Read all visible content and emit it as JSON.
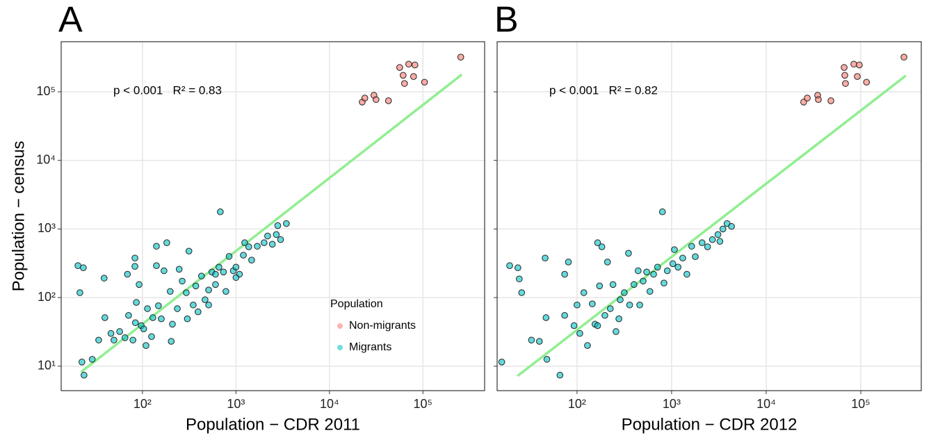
{
  "chart_data": [
    {
      "type": "scatter",
      "title": "A",
      "annotation": "p < 0.001   R² = 0.83",
      "xlabel": "Population − CDR 2011",
      "ylabel": "Population − census",
      "xscale": "log",
      "yscale": "log",
      "grid": true,
      "xlim": [
        13.5,
        457000
      ],
      "ylim": [
        4.4,
        537000
      ],
      "xticks": [
        {
          "value": 100,
          "label": "10²"
        },
        {
          "value": 1000,
          "label": "10³"
        },
        {
          "value": 10000,
          "label": "10⁴"
        },
        {
          "value": 100000,
          "label": "10⁵"
        }
      ],
      "yticks": [
        {
          "value": 10,
          "label": "10¹"
        },
        {
          "value": 100,
          "label": "10²"
        },
        {
          "value": 1000,
          "label": "10³"
        },
        {
          "value": 10000,
          "label": "10⁴"
        },
        {
          "value": 100000,
          "label": "10⁵"
        }
      ],
      "legend": {
        "title": "Population",
        "position": "bottom-right"
      },
      "series": [
        {
          "name": "Non-migrants",
          "color": "#F8766D",
          "x": [
            22400,
            23900,
            29900,
            31500,
            42800,
            56400,
            61400,
            63500,
            70500,
            79400,
            82100,
            104000,
            254000
          ],
          "values": [
            70800,
            81000,
            89000,
            77000,
            74000,
            226000,
            174000,
            132000,
            253000,
            167000,
            246000,
            138000,
            320000
          ]
        },
        {
          "name": "Migrants",
          "color": "#00BFC4",
          "x": [
            20.4,
            23.3,
            21.4,
            38.9,
            39.6,
            22.5,
            23.7,
            29,
            34,
            49.5,
            57,
            65,
            69,
            79,
            83,
            83,
            86,
            84,
            92,
            97,
            103,
            113,
            125,
            129,
            141,
            141,
            148,
            159,
            170,
            182,
            198,
            209,
            236,
            266,
            294,
            314,
            349,
            372,
            428,
            467,
            510,
            553,
            604,
            657,
            680,
            735,
            845,
            937,
            1000,
            1090,
            1200,
            1240,
            1370,
            1470,
            1690,
            2000,
            2180,
            2450,
            2700,
            2800,
            3460,
            3000,
            302,
            203,
            71,
            247,
            510,
            604,
            780,
            109,
            46,
            1000,
            393
          ],
          "values": [
            292,
            272,
            118,
            192,
            51,
            11.5,
            7.4,
            12.6,
            24,
            24,
            32,
            26,
            219,
            24,
            377,
            285,
            85,
            43,
            155,
            39,
            35,
            69,
            27,
            51,
            292,
            560,
            76,
            49,
            246,
            630,
            123,
            41,
            69,
            174,
            118,
            476,
            78,
            148,
            206,
            93,
            129,
            236,
            155,
            278,
            1780,
            236,
            398,
            246,
            278,
            219,
            415,
            630,
            550,
            352,
            560,
            630,
            790,
            600,
            830,
            1120,
            1200,
            700,
            49,
            23,
            55,
            259,
            78,
            219,
            123,
            20,
            30,
            196,
            62
          ]
        }
      ],
      "fit_line": {
        "color": "#90EE90",
        "x": [
          22,
          260000
        ],
        "values": [
          8.2,
          178000
        ]
      }
    },
    {
      "type": "scatter",
      "title": "B",
      "annotation": "p < 0.001   R² = 0.82",
      "xlabel": "Population − CDR 2012",
      "xscale": "log",
      "yscale": "log",
      "grid": true,
      "xlim": [
        14.3,
        436000
      ],
      "ylim": [
        4.4,
        537000
      ],
      "xticks": [
        {
          "value": 100,
          "label": "10²"
        },
        {
          "value": 1000,
          "label": "10³"
        },
        {
          "value": 10000,
          "label": "10⁴"
        },
        {
          "value": 100000,
          "label": "10⁵"
        }
      ],
      "yticks": [
        10,
        100,
        1000,
        10000,
        100000
      ],
      "series": [
        {
          "color": "#F8766D",
          "x": [
            24900,
            27200,
            35000,
            35600,
            48300,
            66700,
            67800,
            68900,
            84400,
            91900,
            96600,
            115000,
            286000
          ],
          "values": [
            70800,
            81000,
            89000,
            77000,
            74000,
            226000,
            174000,
            132000,
            253000,
            167000,
            246000,
            138000,
            320000
          ]
        },
        {
          "color": "#00BFC4",
          "x": [
            16,
            19.4,
            23.7,
            24.5,
            26,
            33,
            40,
            46,
            47,
            48,
            66,
            74,
            74,
            81,
            93,
            100,
            107,
            118,
            129,
            145,
            155,
            165,
            173,
            183,
            197,
            210,
            225,
            240,
            258,
            286,
            316,
            350,
            360,
            400,
            443,
            460,
            500,
            545,
            590,
            645,
            710,
            800,
            830,
            900,
            1030,
            1170,
            1310,
            1450,
            1630,
            1780,
            2100,
            2400,
            2700,
            3090,
            3490,
            3860,
            4300,
            3240,
            277,
            1070,
            165
          ],
          "values": [
            11.5,
            292,
            272,
            187,
            118,
            24,
            23,
            377,
            51,
            12.6,
            7.4,
            55,
            219,
            330,
            39,
            78,
            30,
            118,
            20,
            81,
            41,
            630,
            148,
            550,
            55,
            330,
            69,
            155,
            32,
            93,
            118,
            443,
            78,
            155,
            246,
            78,
            174,
            236,
            123,
            219,
            278,
            1780,
            163,
            246,
            312,
            278,
            377,
            219,
            560,
            395,
            630,
            550,
            700,
            830,
            1000,
            1200,
            1090,
            660,
            49,
            500,
            39
          ]
        }
      ],
      "fit_line": {
        "color": "#90EE90",
        "x": [
          23.5,
          300000
        ],
        "values": [
          7.2,
          172000
        ]
      }
    }
  ]
}
